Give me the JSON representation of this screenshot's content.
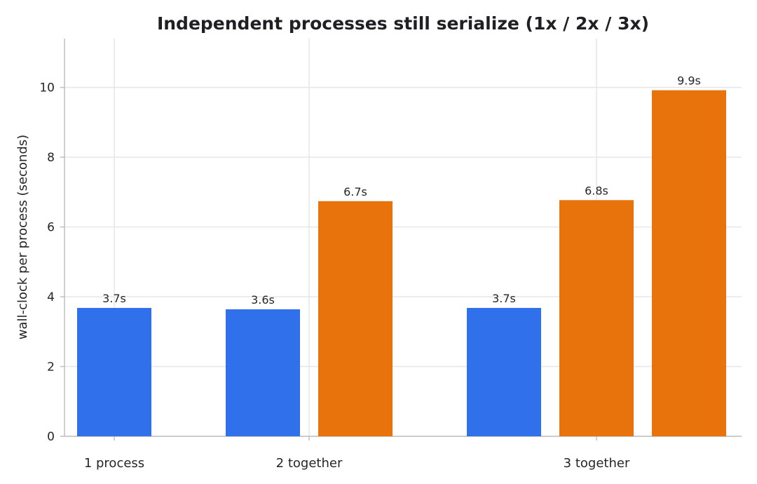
{
  "chart_data": {
    "type": "bar",
    "title": "Independent processes still serialize (1x / 2x / 3x)",
    "xlabel": "",
    "ylabel": "wall-clock per process (seconds)",
    "ylim": [
      0,
      11.4
    ],
    "yticks": [
      0,
      2,
      4,
      6,
      8,
      10
    ],
    "grid": true,
    "legend": "none",
    "colors": {
      "first": "#3070ea",
      "other": "#e8720c",
      "grid": "#e6e6e6",
      "axis": "#bfbfbf"
    },
    "groups": [
      {
        "label": "1 process",
        "bars": [
          {
            "value": 3.68,
            "label": "3.7s",
            "color": "#3070ea"
          }
        ]
      },
      {
        "label": "2 together",
        "bars": [
          {
            "value": 3.64,
            "label": "3.6s",
            "color": "#3070ea"
          },
          {
            "value": 6.74,
            "label": "6.7s",
            "color": "#e8720c"
          }
        ]
      },
      {
        "label": "3 together",
        "bars": [
          {
            "value": 3.68,
            "label": "3.7s",
            "color": "#3070ea"
          },
          {
            "value": 6.77,
            "label": "6.8s",
            "color": "#e8720c"
          },
          {
            "value": 9.92,
            "label": "9.9s",
            "color": "#e8720c"
          }
        ]
      }
    ]
  }
}
